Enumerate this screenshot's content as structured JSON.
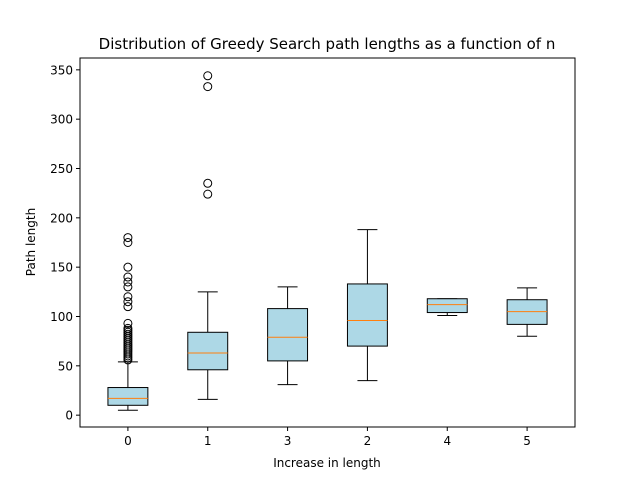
{
  "chart_data": {
    "type": "boxplot",
    "title": "Distribution of Greedy Search path lengths as a function of n",
    "xlabel": "Increase in length",
    "ylabel": "Path length",
    "ylim": [
      -12,
      362
    ],
    "yticks": [
      0,
      50,
      100,
      150,
      200,
      250,
      300,
      350
    ],
    "grid": false,
    "box_fill": "#add8e6",
    "median_color": "#ff7f0e",
    "categories": [
      "0",
      "1",
      "3",
      "2",
      "4",
      "5"
    ],
    "boxes": [
      {
        "label": "0",
        "whisker_low": 5,
        "q1": 10,
        "median": 17,
        "q3": 28,
        "whisker_high": 54,
        "outliers": [
          56,
          58,
          60,
          62,
          64,
          66,
          68,
          70,
          72,
          74,
          76,
          78,
          80,
          82,
          84,
          86,
          88,
          93,
          110,
          115,
          120,
          130,
          135,
          140,
          150,
          175,
          180
        ]
      },
      {
        "label": "1",
        "whisker_low": 16,
        "q1": 46,
        "median": 63,
        "q3": 84,
        "whisker_high": 125,
        "outliers": [
          224,
          235,
          333,
          344
        ]
      },
      {
        "label": "3",
        "whisker_low": 31,
        "q1": 55,
        "median": 79,
        "q3": 108,
        "whisker_high": 130,
        "outliers": []
      },
      {
        "label": "2",
        "whisker_low": 35,
        "q1": 70,
        "median": 96,
        "q3": 133,
        "whisker_high": 188,
        "outliers": []
      },
      {
        "label": "4",
        "whisker_low": 101,
        "q1": 104,
        "median": 112,
        "q3": 118,
        "whisker_high": 118,
        "outliers": []
      },
      {
        "label": "5",
        "whisker_low": 80,
        "q1": 92,
        "median": 105,
        "q3": 117,
        "whisker_high": 129,
        "outliers": []
      }
    ]
  }
}
